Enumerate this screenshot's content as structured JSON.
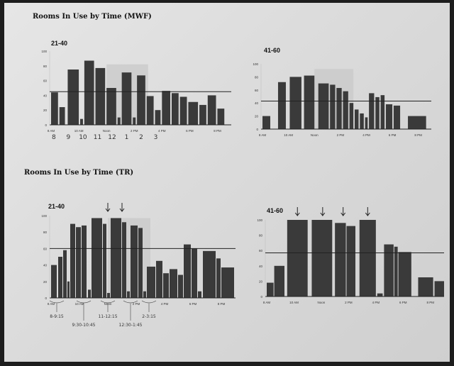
{
  "sections": [
    {
      "title": "Rooms In Use by Time (MWF)"
    },
    {
      "title": "Rooms In Use by Time (TR)"
    }
  ],
  "chart_data": [
    {
      "type": "bar",
      "title": "21-40",
      "ylim": [
        0,
        100
      ],
      "yticks": [
        "0",
        "20",
        "40",
        "60",
        "80",
        "100"
      ],
      "xticks": [
        {
          "x": 0,
          "label": "8 AM"
        },
        {
          "x": 2,
          "label": "10 AM"
        },
        {
          "x": 4,
          "label": "Noon"
        },
        {
          "x": 6,
          "label": "2 PM"
        },
        {
          "x": 8,
          "label": "4 PM"
        },
        {
          "x": 10,
          "label": "6 PM"
        },
        {
          "x": 12,
          "label": "8 PM"
        }
      ],
      "xlim": [
        0,
        13
      ],
      "reference_line": 45,
      "background_band": {
        "x": [
          4,
          7
        ],
        "value": 82
      },
      "bars": [
        {
          "x0": 0.0,
          "x1": 0.5,
          "value": 44
        },
        {
          "x0": 0.6,
          "x1": 1.0,
          "value": 24
        },
        {
          "x0": 1.2,
          "x1": 2.0,
          "value": 75
        },
        {
          "x0": 2.1,
          "x1": 2.3,
          "value": 8
        },
        {
          "x0": 2.4,
          "x1": 3.1,
          "value": 87
        },
        {
          "x0": 3.2,
          "x1": 3.9,
          "value": 77
        },
        {
          "x0": 4.0,
          "x1": 4.7,
          "value": 50
        },
        {
          "x0": 4.8,
          "x1": 5.0,
          "value": 10
        },
        {
          "x0": 5.1,
          "x1": 5.8,
          "value": 71
        },
        {
          "x0": 5.9,
          "x1": 6.1,
          "value": 10
        },
        {
          "x0": 6.2,
          "x1": 6.8,
          "value": 67
        },
        {
          "x0": 6.9,
          "x1": 7.4,
          "value": 39
        },
        {
          "x0": 7.5,
          "x1": 7.9,
          "value": 20
        },
        {
          "x0": 8.0,
          "x1": 8.6,
          "value": 46
        },
        {
          "x0": 8.7,
          "x1": 9.2,
          "value": 43
        },
        {
          "x0": 9.3,
          "x1": 9.8,
          "value": 38
        },
        {
          "x0": 9.9,
          "x1": 10.6,
          "value": 31
        },
        {
          "x0": 10.7,
          "x1": 11.2,
          "value": 27
        },
        {
          "x0": 11.3,
          "x1": 11.9,
          "value": 40
        },
        {
          "x0": 12.0,
          "x1": 12.5,
          "value": 22
        }
      ],
      "handwriting": [
        "8",
        "9",
        "10",
        "11",
        "12",
        "1",
        "2",
        "3"
      ]
    },
    {
      "type": "bar",
      "title": "41-60",
      "ylim": [
        0,
        100
      ],
      "yticks": [
        "0",
        "20",
        "40",
        "60",
        "80",
        "100"
      ],
      "xticks": [
        {
          "x": 0,
          "label": "8 AM"
        },
        {
          "x": 2,
          "label": "10 AM"
        },
        {
          "x": 4,
          "label": "Noon"
        },
        {
          "x": 6,
          "label": "2 PM"
        },
        {
          "x": 8,
          "label": "4 PM"
        },
        {
          "x": 10,
          "label": "6 PM"
        },
        {
          "x": 12,
          "label": "8 PM"
        }
      ],
      "xlim": [
        0,
        13
      ],
      "reference_line": 43,
      "background_band": {
        "x": [
          4,
          7
        ],
        "value": 92
      },
      "bars": [
        {
          "x0": 0.0,
          "x1": 0.6,
          "value": 20
        },
        {
          "x0": 1.2,
          "x1": 1.8,
          "value": 72
        },
        {
          "x0": 2.1,
          "x1": 3.0,
          "value": 80
        },
        {
          "x0": 3.2,
          "x1": 4.0,
          "value": 82
        },
        {
          "x0": 4.3,
          "x1": 5.1,
          "value": 70
        },
        {
          "x0": 5.2,
          "x1": 5.6,
          "value": 68
        },
        {
          "x0": 5.7,
          "x1": 6.1,
          "value": 63
        },
        {
          "x0": 6.2,
          "x1": 6.6,
          "value": 58
        },
        {
          "x0": 6.7,
          "x1": 7.0,
          "value": 40
        },
        {
          "x0": 7.1,
          "x1": 7.4,
          "value": 30
        },
        {
          "x0": 7.5,
          "x1": 7.8,
          "value": 24
        },
        {
          "x0": 7.9,
          "x1": 8.1,
          "value": 18
        },
        {
          "x0": 8.2,
          "x1": 8.6,
          "value": 55
        },
        {
          "x0": 8.7,
          "x1": 9.0,
          "value": 49
        },
        {
          "x0": 9.1,
          "x1": 9.4,
          "value": 52
        },
        {
          "x0": 9.5,
          "x1": 10.0,
          "value": 38
        },
        {
          "x0": 10.1,
          "x1": 10.6,
          "value": 36
        },
        {
          "x0": 11.2,
          "x1": 12.6,
          "value": 20
        }
      ]
    },
    {
      "type": "bar",
      "title": "21-40",
      "ylim": [
        0,
        100
      ],
      "yticks": [
        "0",
        "20",
        "40",
        "60",
        "80",
        "100"
      ],
      "xticks": [
        {
          "x": 0,
          "label": "8 AM"
        },
        {
          "x": 2,
          "label": "10 AM"
        },
        {
          "x": 4,
          "label": "Noon"
        },
        {
          "x": 6,
          "label": "2 PM"
        },
        {
          "x": 8,
          "label": "4 PM"
        },
        {
          "x": 10,
          "label": "6 PM"
        },
        {
          "x": 12,
          "label": "8 PM"
        }
      ],
      "xlim": [
        0,
        13
      ],
      "reference_line": 60,
      "background_band": {
        "x": [
          4,
          7
        ],
        "value": 97
      },
      "bars": [
        {
          "x0": 0.0,
          "x1": 0.4,
          "value": 40
        },
        {
          "x0": 0.5,
          "x1": 0.8,
          "value": 50
        },
        {
          "x0": 0.85,
          "x1": 1.1,
          "value": 58
        },
        {
          "x0": 1.15,
          "x1": 1.3,
          "value": 20
        },
        {
          "x0": 1.35,
          "x1": 1.7,
          "value": 90
        },
        {
          "x0": 1.75,
          "x1": 2.1,
          "value": 86
        },
        {
          "x0": 2.15,
          "x1": 2.5,
          "value": 88
        },
        {
          "x0": 2.6,
          "x1": 2.8,
          "value": 10
        },
        {
          "x0": 2.85,
          "x1": 3.6,
          "value": 97
        },
        {
          "x0": 3.65,
          "x1": 3.9,
          "value": 90
        },
        {
          "x0": 3.95,
          "x1": 4.15,
          "value": 6
        },
        {
          "x0": 4.2,
          "x1": 4.95,
          "value": 97
        },
        {
          "x0": 5.0,
          "x1": 5.3,
          "value": 92
        },
        {
          "x0": 5.35,
          "x1": 5.55,
          "value": 8
        },
        {
          "x0": 5.6,
          "x1": 6.1,
          "value": 88
        },
        {
          "x0": 6.15,
          "x1": 6.45,
          "value": 85
        },
        {
          "x0": 6.5,
          "x1": 6.7,
          "value": 8
        },
        {
          "x0": 6.75,
          "x1": 7.35,
          "value": 38
        },
        {
          "x0": 7.4,
          "x1": 7.85,
          "value": 45
        },
        {
          "x0": 7.9,
          "x1": 8.3,
          "value": 30
        },
        {
          "x0": 8.35,
          "x1": 8.9,
          "value": 35
        },
        {
          "x0": 8.95,
          "x1": 9.3,
          "value": 28
        },
        {
          "x0": 9.35,
          "x1": 9.85,
          "value": 65
        },
        {
          "x0": 9.9,
          "x1": 10.3,
          "value": 60
        },
        {
          "x0": 10.35,
          "x1": 10.6,
          "value": 8
        },
        {
          "x0": 10.7,
          "x1": 11.6,
          "value": 57
        },
        {
          "x0": 11.65,
          "x1": 11.95,
          "value": 48
        },
        {
          "x0": 12.0,
          "x1": 12.9,
          "value": 37
        }
      ],
      "arrows": [
        4.0,
        5.0
      ],
      "handwriting": [
        "8-9:15",
        "9:30-10:45",
        "11-12:15",
        "12:30-1:45",
        "2-3:15"
      ]
    },
    {
      "type": "bar",
      "title": "41-60",
      "ylim": [
        0,
        100
      ],
      "yticks": [
        "0",
        "20",
        "40",
        "60",
        "80",
        "100"
      ],
      "xticks": [
        {
          "x": 0,
          "label": "8 AM"
        },
        {
          "x": 2,
          "label": "10 AM"
        },
        {
          "x": 4,
          "label": "Noon"
        },
        {
          "x": 6,
          "label": "2 PM"
        },
        {
          "x": 8,
          "label": "4 PM"
        },
        {
          "x": 10,
          "label": "6 PM"
        },
        {
          "x": 12,
          "label": "8 PM"
        }
      ],
      "xlim": [
        0,
        13
      ],
      "reference_line": 57,
      "bars": [
        {
          "x0": 0.0,
          "x1": 0.5,
          "value": 18
        },
        {
          "x0": 0.55,
          "x1": 1.3,
          "value": 40
        },
        {
          "x0": 1.5,
          "x1": 3.0,
          "value": 100
        },
        {
          "x0": 3.3,
          "x1": 4.8,
          "value": 100
        },
        {
          "x0": 5.0,
          "x1": 5.8,
          "value": 96
        },
        {
          "x0": 5.85,
          "x1": 6.5,
          "value": 92
        },
        {
          "x0": 6.8,
          "x1": 8.0,
          "value": 100
        },
        {
          "x0": 8.1,
          "x1": 8.5,
          "value": 4
        },
        {
          "x0": 8.6,
          "x1": 9.3,
          "value": 68
        },
        {
          "x0": 9.35,
          "x1": 9.6,
          "value": 65
        },
        {
          "x0": 9.65,
          "x1": 10.6,
          "value": 58
        },
        {
          "x0": 11.1,
          "x1": 12.2,
          "value": 25
        },
        {
          "x0": 12.3,
          "x1": 13.0,
          "value": 20
        }
      ],
      "arrows": [
        2.25,
        4.1,
        5.6,
        7.4
      ]
    }
  ]
}
